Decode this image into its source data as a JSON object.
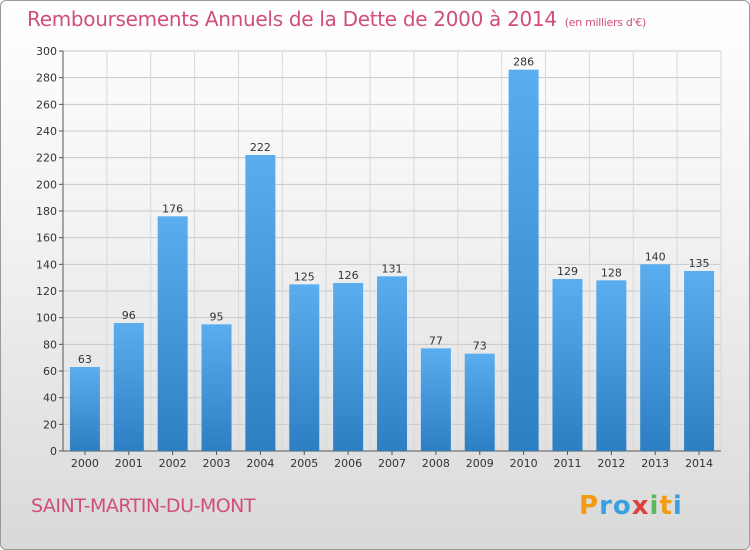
{
  "header": {
    "title": "Remboursements Annuels de la Dette de 2000 à 2014",
    "unit": "(en milliers d'€)"
  },
  "footer": {
    "commune": "SAINT-MARTIN-DU-MONT",
    "logo": "Proxiti"
  },
  "colors": {
    "bar_top": "#5aaef0",
    "bar_bottom": "#2c7fc2",
    "title": "#d04e7c"
  },
  "chart_data": {
    "type": "bar",
    "title": "Remboursements Annuels de la Dette de 2000 à 2014",
    "subtitle": "(en milliers d'€)",
    "xlabel": "",
    "ylabel": "",
    "categories": [
      "2000",
      "2001",
      "2002",
      "2003",
      "2004",
      "2005",
      "2006",
      "2007",
      "2008",
      "2009",
      "2010",
      "2011",
      "2012",
      "2013",
      "2014"
    ],
    "values": [
      63,
      96,
      176,
      95,
      222,
      125,
      126,
      131,
      77,
      73,
      286,
      129,
      128,
      140,
      135
    ],
    "ylim": [
      0,
      300
    ],
    "yticks": [
      0,
      20,
      40,
      60,
      80,
      100,
      120,
      140,
      160,
      180,
      200,
      220,
      240,
      260,
      280,
      300
    ],
    "grid": true,
    "legend": "none"
  }
}
